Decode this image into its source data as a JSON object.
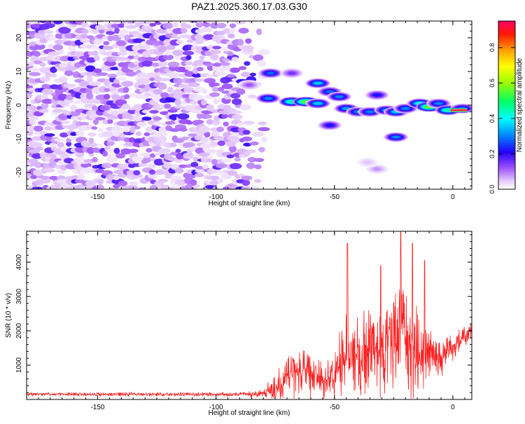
{
  "title": "PAZ1.2025.360.17.03.G30",
  "chart_data": [
    {
      "type": "heatmap",
      "name": "spectrogram",
      "xlabel": "Height of straight line (km)",
      "ylabel": "Frequency (Hz)",
      "xlim": [
        -180,
        8
      ],
      "ylim": [
        -25,
        25
      ],
      "x_ticks": [
        -150,
        -100,
        -50,
        0
      ],
      "x_tick_labels": [
        "-150",
        "-100",
        "-50",
        "0"
      ],
      "y_ticks": [
        -20,
        -10,
        0,
        10,
        20
      ],
      "y_tick_labels": [
        "-20",
        "-10",
        "0",
        "10",
        "20"
      ],
      "colorbar": {
        "label": "Normalized spectral amplitude",
        "range": [
          0,
          0.95
        ],
        "ticks": [
          0.0,
          0.2,
          0.4,
          0.6,
          0.8
        ],
        "tick_labels": [
          "0.0",
          "0.2",
          "0.4",
          "0.6",
          "0.8"
        ]
      },
      "features": [
        {
          "x": -77,
          "y": 9.5,
          "amp": 0.28
        },
        {
          "x": -68,
          "y": 9.5,
          "amp": 0.15
        },
        {
          "x": -86,
          "y": 6,
          "amp": 0.12
        },
        {
          "x": -78,
          "y": 2,
          "amp": 0.3
        },
        {
          "x": -68,
          "y": 1,
          "amp": 0.45
        },
        {
          "x": -62,
          "y": 1,
          "amp": 0.55
        },
        {
          "x": -57,
          "y": 0.5,
          "amp": 0.35
        },
        {
          "x": -57,
          "y": 6.5,
          "amp": 0.35
        },
        {
          "x": -52,
          "y": 4,
          "amp": 0.28
        },
        {
          "x": -48,
          "y": 2.5,
          "amp": 0.3
        },
        {
          "x": -45,
          "y": -1,
          "amp": 0.32
        },
        {
          "x": -40,
          "y": -2,
          "amp": 0.3
        },
        {
          "x": -35,
          "y": -2,
          "amp": 0.3
        },
        {
          "x": -32,
          "y": 3,
          "amp": 0.22
        },
        {
          "x": -28,
          "y": -1.5,
          "amp": 0.32
        },
        {
          "x": -24,
          "y": -2,
          "amp": 0.35
        },
        {
          "x": -52,
          "y": -6,
          "amp": 0.22
        },
        {
          "x": -24,
          "y": -9.5,
          "amp": 0.3
        },
        {
          "x": -20,
          "y": -1,
          "amp": 0.3
        },
        {
          "x": -14,
          "y": 0.5,
          "amp": 0.4
        },
        {
          "x": -10,
          "y": -0.5,
          "amp": 0.55
        },
        {
          "x": -6,
          "y": 0.5,
          "amp": 0.3
        },
        {
          "x": -2,
          "y": -1.5,
          "amp": 0.45
        },
        {
          "x": 4,
          "y": -1,
          "amp": 0.3
        },
        {
          "x": -32,
          "y": -19,
          "amp": 0.08
        },
        {
          "x": -36,
          "y": -17,
          "amp": 0.05
        }
      ],
      "hot_band": {
        "x_start": -1,
        "x_end": 6,
        "y": -1.5,
        "amp": 0.95
      }
    },
    {
      "type": "line",
      "name": "snr",
      "xlabel": "Height of straight line (km)",
      "ylabel": "SNR (10 * v/v)",
      "xlim": [
        -180,
        8
      ],
      "ylim": [
        0,
        4900
      ],
      "x_ticks": [
        -150,
        -100,
        -50,
        0
      ],
      "x_tick_labels": [
        "-150",
        "-100",
        "-50",
        "0"
      ],
      "y_ticks": [
        1000,
        2000,
        3000,
        4000
      ],
      "y_tick_labels": [
        "1000",
        "2000",
        "3000",
        "4000"
      ],
      "color": "#ff2020",
      "baseline": 150,
      "profile_x": [
        -180,
        -90,
        -80,
        -75,
        -70,
        -65,
        -60,
        -55,
        -50,
        -47,
        -45,
        -42,
        -40,
        -35,
        -30,
        -25,
        -22,
        -20,
        -15,
        -10,
        -5,
        0,
        5,
        8
      ],
      "profile_mean": [
        150,
        150,
        170,
        300,
        700,
        850,
        650,
        600,
        700,
        1100,
        1500,
        1300,
        1200,
        1500,
        1400,
        1700,
        2000,
        1600,
        1500,
        1300,
        1300,
        1500,
        1800,
        2000
      ],
      "profile_amp": [
        60,
        70,
        150,
        500,
        800,
        800,
        700,
        650,
        700,
        1200,
        1100,
        1100,
        1300,
        1500,
        1600,
        1800,
        2000,
        1700,
        1600,
        1000,
        700,
        400,
        400,
        300
      ],
      "peaks": [
        {
          "x": -44.5,
          "y": 4550
        },
        {
          "x": -30.5,
          "y": 3900
        },
        {
          "x": -22,
          "y": 4900
        },
        {
          "x": -17,
          "y": 4550
        },
        {
          "x": -12,
          "y": 4050
        }
      ]
    }
  ]
}
